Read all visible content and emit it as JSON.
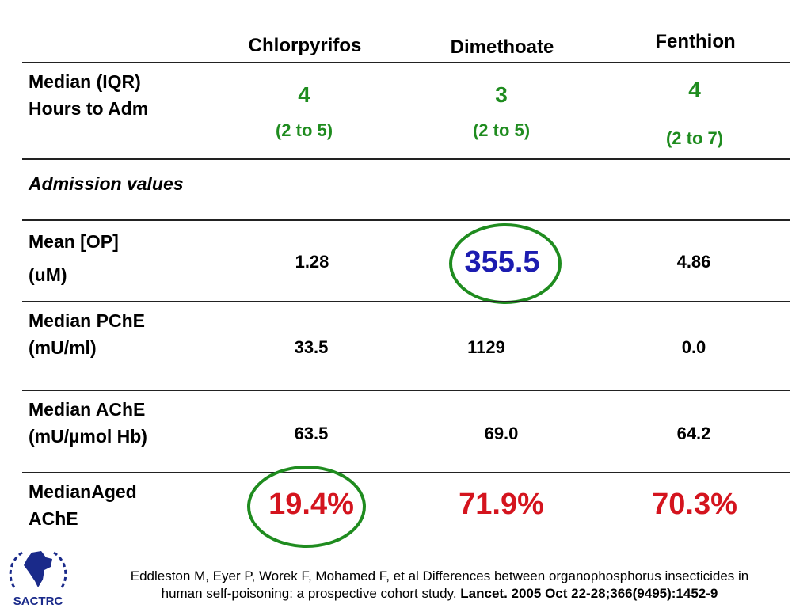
{
  "columns": [
    "Chlorpyrifos",
    "Dimethoate",
    "Fenthion"
  ],
  "rows": {
    "hours": {
      "label_line1": "Median (IQR)",
      "label_line2": "Hours to Adm",
      "values": [
        "4",
        "3",
        "4"
      ],
      "ranges": [
        "(2 to 5)",
        "(2 to 5)",
        "(2 to 7)"
      ]
    },
    "admission": {
      "label": "Admission values"
    },
    "mean_op": {
      "label_line1": "Mean [OP]",
      "label_line2": "(uM)",
      "values": [
        "1.28",
        "355.5",
        "4.86"
      ]
    },
    "pche": {
      "label_line1": "Median PChE",
      "label_line2": "(mU/ml)",
      "values": [
        "33.5",
        "1129",
        "0.0"
      ]
    },
    "ache": {
      "label_line1": "Median AChE",
      "label_line2": "(mU/µmol Hb)",
      "values": [
        "63.5",
        "69.0",
        "64.2"
      ]
    },
    "aged": {
      "label_line1": "MedianAged",
      "label_line2": "AChE",
      "values": [
        "19.4%",
        "71.9%",
        "70.3%"
      ]
    }
  },
  "citation": {
    "line1": "Eddleston M, Eyer P, Worek F, Mohamed F, et al  Differences between organophosphorus insecticides in",
    "line2_plain": "human self-poisoning: a prospective cohort study. ",
    "line2_bold": "Lancet. 2005 Oct 22-28;366(9495):1452-9"
  },
  "logo": {
    "text": "SACTRC",
    "icon": "india-map-logo"
  },
  "colors": {
    "green": "#1f8c1f",
    "blue": "#1c1cb0",
    "red": "#d4141e",
    "logo_blue": "#1a2a8a"
  }
}
